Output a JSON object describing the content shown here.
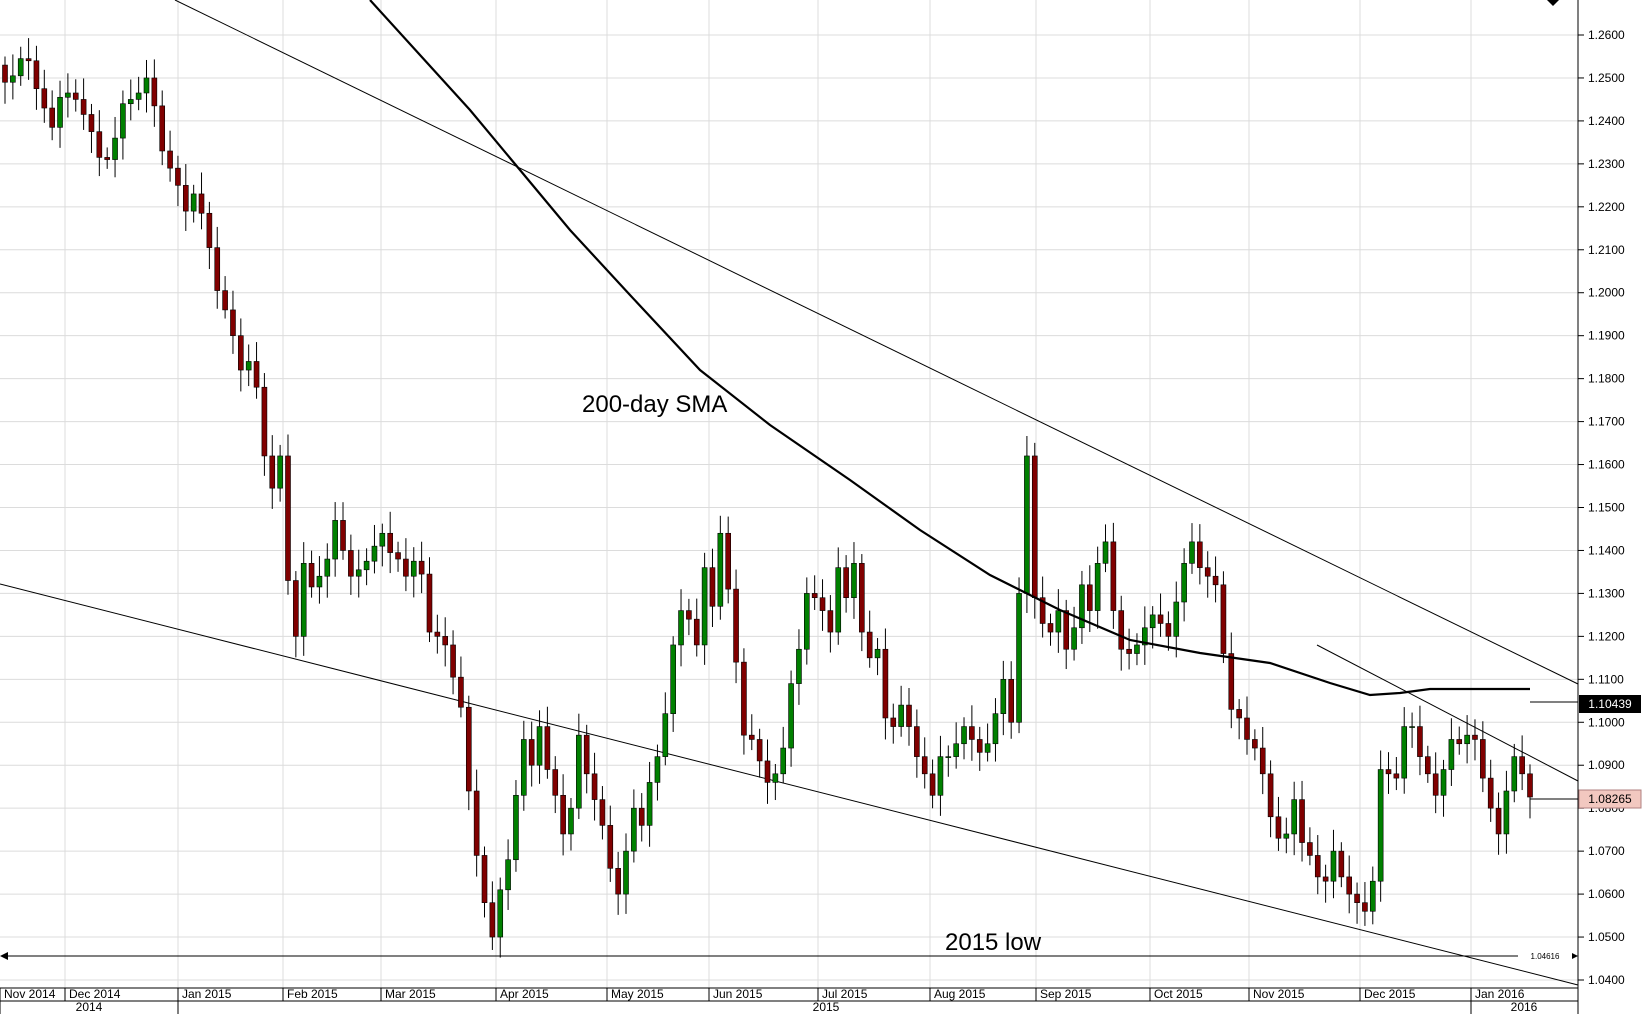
{
  "chart_data": {
    "type": "candlestick",
    "ylim": [
      1.04,
      1.265
    ],
    "y_ticks": [
      "1.2600",
      "1.2500",
      "1.2400",
      "1.2300",
      "1.2200",
      "1.2100",
      "1.2000",
      "1.1900",
      "1.1800",
      "1.1700",
      "1.1600",
      "1.1500",
      "1.1400",
      "1.1300",
      "1.1200",
      "1.1100",
      "1.1000",
      "1.0900",
      "1.0800",
      "1.0700",
      "1.0600",
      "1.0500",
      "1.0400"
    ],
    "x_ticks": [
      "Nov 2014",
      "Dec 2014",
      "Jan 2015",
      "Feb 2015",
      "Mar 2015",
      "Apr 2015",
      "May 2015",
      "Jun 2015",
      "Jul 2015",
      "Aug 2015",
      "Sep 2015",
      "Oct 2015",
      "Nov 2015",
      "Dec 2015",
      "Jan 2016"
    ],
    "year_labels": [
      "2014",
      "2015",
      "2016"
    ],
    "grid": true,
    "colors": {
      "up": "#008000",
      "down": "#800000",
      "line": "#000000",
      "grid": "#dcdcdc",
      "last_price_bg": "#f2c8c0"
    },
    "annotations": {
      "sma": "200-day SMA",
      "low": "2015 low"
    },
    "price_labels": {
      "sma_value": "1.10439",
      "last_price": "1.08265",
      "low_value": "1.04616"
    },
    "series_close": [
      1.249,
      1.2505,
      1.2545,
      1.254,
      1.2475,
      1.243,
      1.2385,
      1.2455,
      1.2465,
      1.245,
      1.2415,
      1.2375,
      1.2315,
      1.231,
      1.236,
      1.244,
      1.245,
      1.2465,
      1.25,
      1.2435,
      1.233,
      1.229,
      1.225,
      1.219,
      1.223,
      1.2185,
      1.2105,
      1.2005,
      1.196,
      1.19,
      1.182,
      1.184,
      1.178,
      1.162,
      1.1545,
      1.162,
      1.133,
      1.12,
      1.137,
      1.1315,
      1.134,
      1.138,
      1.147,
      1.14,
      1.134,
      1.1355,
      1.1375,
      1.141,
      1.144,
      1.1395,
      1.138,
      1.134,
      1.1375,
      1.1345,
      1.121,
      1.12,
      1.118,
      1.1105,
      1.1035,
      1.084,
      1.069,
      1.058,
      1.05,
      1.061,
      1.068,
      1.083,
      1.096,
      1.09,
      1.099,
      1.089,
      1.083,
      1.074,
      1.08,
      1.097,
      1.088,
      1.082,
      1.076,
      1.066,
      1.06,
      1.07,
      1.08,
      1.076,
      1.086,
      1.092,
      1.102,
      1.118,
      1.126,
      1.124,
      1.118,
      1.136,
      1.127,
      1.144,
      1.131,
      1.114,
      1.097,
      1.096,
      1.091,
      1.086,
      1.088,
      1.094,
      1.109,
      1.117,
      1.13,
      1.129,
      1.126,
      1.121,
      1.136,
      1.129,
      1.137,
      1.121,
      1.115,
      1.117,
      1.101,
      1.099,
      1.104,
      1.099,
      1.092,
      1.088,
      1.083,
      1.092,
      1.092,
      1.095,
      1.099,
      1.096,
      1.093,
      1.095,
      1.102,
      1.11,
      1.1,
      1.13,
      1.162,
      1.129,
      1.123,
      1.121,
      1.126,
      1.117,
      1.122,
      1.132,
      1.126,
      1.137,
      1.142,
      1.126,
      1.117,
      1.116,
      1.118,
      1.122,
      1.125,
      1.123,
      1.12,
      1.128,
      1.137,
      1.142,
      1.136,
      1.134,
      1.132,
      1.116,
      1.103,
      1.101,
      1.096,
      1.094,
      1.088,
      1.078,
      1.073,
      1.074,
      1.082,
      1.072,
      1.069,
      1.064,
      1.063,
      1.07,
      1.064,
      1.06,
      1.058,
      1.056,
      1.063,
      1.089,
      1.088,
      1.087,
      1.099,
      1.099,
      1.092,
      1.088,
      1.083,
      1.089,
      1.096,
      1.095,
      1.097,
      1.096,
      1.087,
      1.08,
      1.074,
      1.084,
      1.092,
      1.088,
      1.0826
    ]
  }
}
